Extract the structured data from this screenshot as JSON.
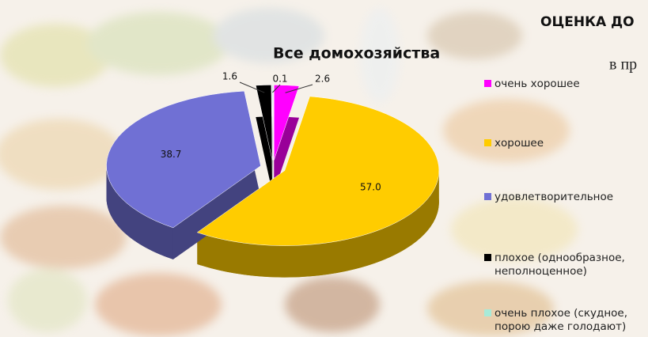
{
  "chart_data": {
    "type": "pie",
    "title": "Все домохозяйства",
    "annotations": [
      "ОЦЕНКА ДО",
      "в пр"
    ],
    "series": [
      {
        "name": "очень хорошее",
        "color": "#ff00ff",
        "values": [
          2.6
        ],
        "value_labels": [
          "2.6"
        ]
      },
      {
        "name": "хорошее",
        "color": "#ffcc00",
        "values": [
          57.0
        ],
        "value_labels": [
          "57.0"
        ]
      },
      {
        "name": "удовлетворительное",
        "color": "#7070d4",
        "values": [
          38.7
        ],
        "value_labels": [
          "38.7"
        ]
      },
      {
        "name": "плохое (однообразное, неполноценное)",
        "color": "#000000",
        "values": [
          1.6
        ],
        "value_labels": [
          "1.6"
        ]
      },
      {
        "name": "очень плохое (скудное, порою даже голодают)",
        "color": "#a8ead8",
        "values": [
          0.1
        ],
        "value_labels": [
          "0.1"
        ]
      }
    ]
  }
}
